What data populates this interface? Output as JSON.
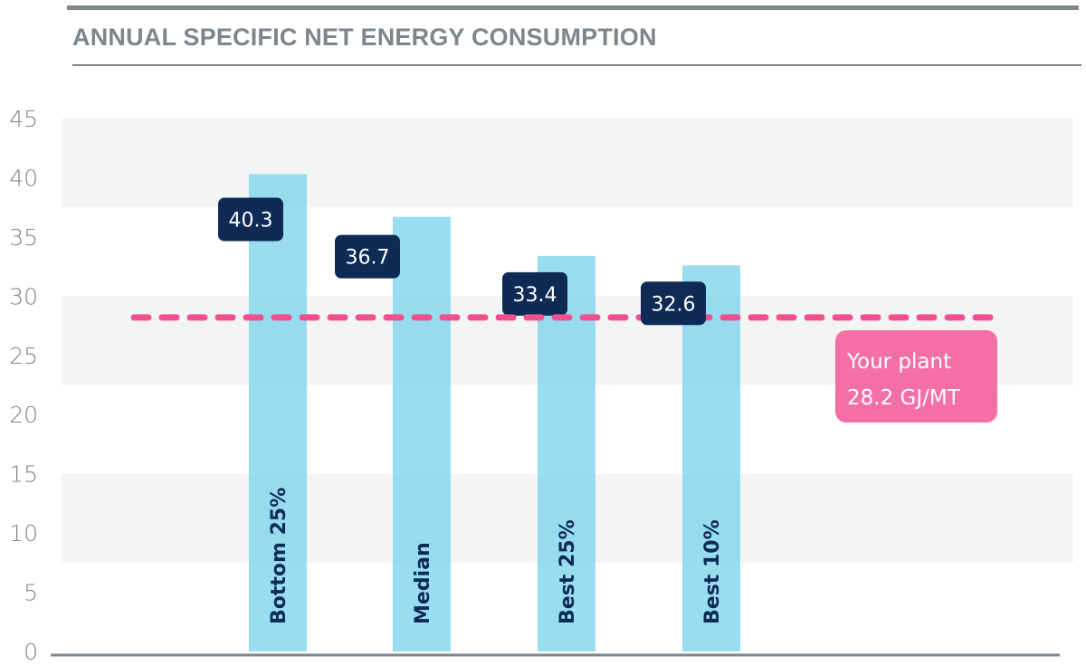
{
  "title": "ANNUAL SPECIFIC NET ENERGY CONSUMPTION",
  "colors": {
    "bar": "#7fd6ec",
    "label_bg": "#0e2a55",
    "reference": "#f0508f",
    "reference_box": "#f36fa6",
    "band": "#f3f4f4",
    "axis_text": "#7d868c",
    "rule": "#7f878d"
  },
  "chart_data": {
    "type": "bar",
    "title": "ANNUAL SPECIFIC NET ENERGY CONSUMPTION",
    "xlabel": "",
    "ylabel": "",
    "ylim": [
      0,
      45
    ],
    "yticks": [
      0,
      5,
      10,
      15,
      20,
      25,
      30,
      35,
      40,
      45
    ],
    "ytick_labels": [
      "0",
      "5",
      "10",
      "15",
      "20",
      "25",
      "30",
      "35",
      "40",
      "45"
    ],
    "bands": [
      [
        37.5,
        45
      ],
      [
        22.5,
        30
      ],
      [
        7.5,
        15
      ]
    ],
    "grid": false,
    "legend": "none",
    "categories": [
      "Bottom 25%",
      "Median",
      "Best 25%",
      "Best 10%"
    ],
    "values": [
      40.3,
      36.7,
      33.4,
      32.6
    ],
    "data_labels": [
      "40.3",
      "36.7",
      "33.4",
      "32.6"
    ],
    "reference_line": {
      "value": 28.2,
      "style": "dashed",
      "label_line1": "Your plant",
      "label_line2": "28.2 GJ/MT"
    }
  }
}
